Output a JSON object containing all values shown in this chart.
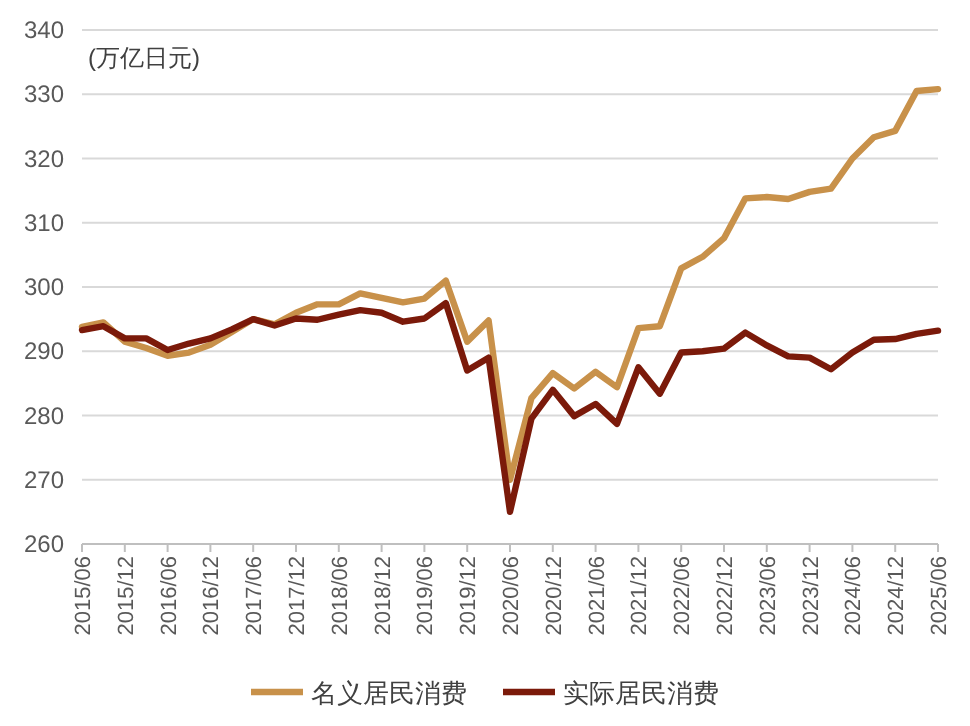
{
  "chart_data": {
    "type": "line",
    "ylabel": "(万亿日元)",
    "categories": [
      "2015/06",
      null,
      "2015/12",
      null,
      "2016/06",
      null,
      "2016/12",
      null,
      "2017/06",
      null,
      "2017/12",
      null,
      "2018/06",
      null,
      "2018/12",
      null,
      "2019/06",
      null,
      "2019/12",
      null,
      "2020/06",
      null,
      "2020/12",
      null,
      "2021/06",
      null,
      "2021/12",
      null,
      "2022/06",
      null,
      "2022/12",
      null,
      "2023/06",
      null,
      "2023/12",
      null,
      "2024/06",
      null,
      "2024/12",
      null,
      "2025/06"
    ],
    "series": [
      {
        "name": "名义居民消费",
        "color": "#c8914a",
        "values": [
          293.8,
          294.5,
          291.5,
          290.5,
          289.3,
          289.8,
          291,
          293,
          295,
          294.2,
          296,
          297.3,
          297.3,
          299,
          298.3,
          297.6,
          298.2,
          301,
          291.5,
          294.8,
          270,
          282.7,
          286.6,
          284.2,
          286.8,
          284.4,
          293.6,
          293.9,
          302.9,
          304.7,
          307.6,
          313.8,
          314,
          313.7,
          314.8,
          315.3,
          320,
          323.3,
          324.3,
          330.5,
          330.8
        ]
      },
      {
        "name": "实际居民消费",
        "color": "#7b1a0a",
        "values": [
          293.3,
          293.9,
          292,
          292,
          290.2,
          291.2,
          292,
          293.4,
          295,
          294,
          295.1,
          294.9,
          295.7,
          296.4,
          296,
          294.6,
          295.1,
          297.5,
          287,
          289,
          265,
          279.5,
          284,
          279.9,
          281.8,
          278.7,
          287.5,
          283.4,
          289.8,
          290,
          290.4,
          292.9,
          290.9,
          289.2,
          289,
          287.2,
          289.8,
          291.8,
          291.9,
          292.7,
          293.2
        ]
      }
    ],
    "ylim": [
      260,
      340
    ],
    "yticks": [
      260,
      270,
      280,
      290,
      300,
      310,
      320,
      330,
      340
    ],
    "grid": "y",
    "legend": "bottom",
    "marker": "none",
    "line_style": "solid"
  }
}
